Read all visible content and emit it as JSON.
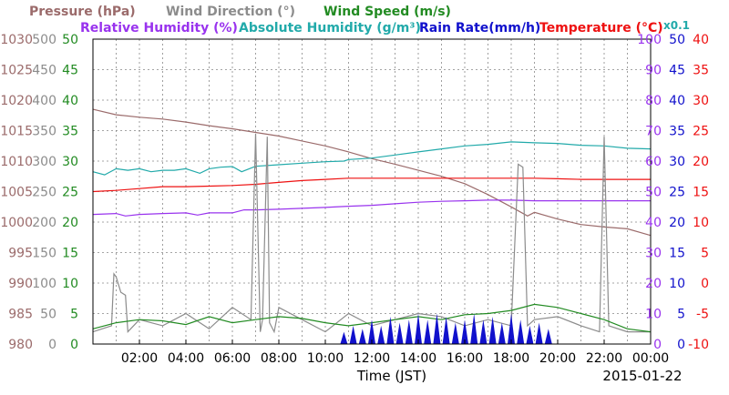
{
  "chart_data": {
    "type": "line",
    "legend_row1": [
      {
        "label": "Pressure (hPa)",
        "color": "#9b6b6b"
      },
      {
        "label": "Wind Direction (°)",
        "color": "#8c8c8c"
      },
      {
        "label": "Wind Speed (m/s)",
        "color": "#228b22"
      }
    ],
    "legend_row2": [
      {
        "label": "Relative Humidity (%)",
        "color": "#9933ee"
      },
      {
        "label": "Absolute Humidity (g/m³)",
        "color": "#22aaaa"
      },
      {
        "label": "Rain Rate(mm/h)",
        "color": "#1111cc"
      },
      {
        "label": "Temperature (°C)",
        "color": "#ee1111"
      }
    ],
    "scale_note": "x0.1",
    "xlabel": "Time (JST)",
    "date": "2015-01-22",
    "x_ticks": [
      "02:00",
      "04:00",
      "06:00",
      "08:00",
      "10:00",
      "12:00",
      "14:00",
      "16:00",
      "18:00",
      "20:00",
      "22:00",
      "00:00"
    ],
    "x_range_hours": [
      0,
      24
    ],
    "grid": true,
    "axes": {
      "pressure": {
        "color": "#9b6b6b",
        "ticks": [
          "980",
          "985",
          "990",
          "995",
          "1000",
          "1005",
          "1010",
          "1015",
          "1020",
          "1025",
          "1030"
        ],
        "range": [
          980,
          1030
        ]
      },
      "wind_direction": {
        "color": "#8c8c8c",
        "ticks": [
          "0",
          "50",
          "100",
          "150",
          "200",
          "250",
          "300",
          "350",
          "400",
          "450",
          "500"
        ],
        "range": [
          0,
          500
        ]
      },
      "wind_speed": {
        "color": "#228b22",
        "ticks": [
          "0",
          "5",
          "10",
          "15",
          "20",
          "25",
          "30",
          "35",
          "40",
          "45",
          "50"
        ],
        "range": [
          0,
          50
        ]
      },
      "humidity": {
        "color": "#9933ee",
        "ticks": [
          "0",
          "10",
          "20",
          "30",
          "40",
          "50",
          "60",
          "70",
          "80",
          "90",
          "100"
        ],
        "range": [
          0,
          100
        ]
      },
      "rain_rate": {
        "color": "#1111cc",
        "ticks": [
          "0",
          "5",
          "10",
          "15",
          "20",
          "25",
          "30",
          "35",
          "40",
          "45",
          "50"
        ],
        "range": [
          0,
          50
        ]
      },
      "temperature": {
        "color": "#ee1111",
        "ticks": [
          "-10",
          "-5",
          "0",
          "5",
          "10",
          "15",
          "20",
          "25",
          "30",
          "35",
          "40"
        ],
        "range": [
          -10,
          40
        ]
      }
    },
    "series": [
      {
        "name": "Pressure (hPa)",
        "axis": "pressure",
        "x": [
          0,
          1,
          2,
          3,
          4,
          5,
          6,
          7,
          8,
          9,
          10,
          11,
          12,
          13,
          14,
          15,
          16,
          17,
          18,
          18.7,
          19,
          20,
          21,
          22,
          23,
          24
        ],
        "values": [
          1018.5,
          1017.6,
          1017.2,
          1016.9,
          1016.4,
          1015.8,
          1015.3,
          1014.7,
          1014.1,
          1013.3,
          1012.5,
          1011.5,
          1010.4,
          1009.5,
          1008.5,
          1007.5,
          1006.3,
          1004.5,
          1002.5,
          1001.0,
          1001.6,
          1000.5,
          999.6,
          999.2,
          998.9,
          997.8
        ]
      },
      {
        "name": "Absolute Humidity (g/m³)",
        "axis": "humidity",
        "x": [
          0,
          0.5,
          1,
          1.5,
          2,
          2.5,
          3,
          3.5,
          4,
          4.6,
          5,
          5.5,
          6,
          6.4,
          7,
          8,
          9,
          10,
          10.8,
          11,
          12,
          13,
          14,
          15,
          16,
          17,
          18,
          19,
          20,
          21,
          22,
          23,
          24
        ],
        "values": [
          56.5,
          55.5,
          57.5,
          57.0,
          57.5,
          56.5,
          57.0,
          57.0,
          57.5,
          56.0,
          57.5,
          58.0,
          58.2,
          56.5,
          58.3,
          58.8,
          59.3,
          59.8,
          60.0,
          60.5,
          61.0,
          62.0,
          63.0,
          64.0,
          65.0,
          65.5,
          66.3,
          66.0,
          65.8,
          65.2,
          65.0,
          64.2,
          64.0
        ]
      },
      {
        "name": "Temperature (°C)",
        "axis": "temperature",
        "x": [
          0,
          1,
          2,
          3,
          4,
          5,
          6,
          7,
          8,
          9,
          10,
          11,
          12,
          13,
          14,
          15,
          16,
          17,
          18,
          19,
          20,
          21,
          22,
          23,
          24
        ],
        "values": [
          15.0,
          15.2,
          15.5,
          15.8,
          15.8,
          15.9,
          16.0,
          16.2,
          16.5,
          16.8,
          17.0,
          17.2,
          17.2,
          17.2,
          17.2,
          17.2,
          17.2,
          17.2,
          17.2,
          17.2,
          17.1,
          17.0,
          17.0,
          17.0,
          17.0
        ]
      },
      {
        "name": "Relative Humidity (%)",
        "axis": "humidity",
        "x": [
          0,
          1,
          1.4,
          2,
          3,
          4,
          4.5,
          5,
          6,
          6.5,
          7,
          8,
          9,
          10,
          11,
          12,
          13,
          14,
          15,
          16,
          17,
          18,
          19,
          20,
          21,
          22,
          23,
          24
        ],
        "values": [
          42.5,
          42.8,
          42.0,
          42.5,
          42.8,
          43.0,
          42.3,
          43.0,
          43.0,
          44.0,
          44.0,
          44.2,
          44.5,
          44.8,
          45.2,
          45.5,
          46.0,
          46.5,
          46.8,
          47.0,
          47.2,
          47.2,
          47.0,
          47.0,
          47.0,
          47.0,
          47.0,
          47.0
        ]
      },
      {
        "name": "Wind Direction (°)",
        "axis": "wind_direction",
        "x": [
          0,
          0.8,
          0.9,
          1.0,
          1.2,
          1.4,
          1.5,
          2,
          3,
          4,
          5,
          6,
          6.8,
          7.0,
          7.2,
          7.3,
          7.5,
          7.6,
          7.8,
          8,
          9,
          10,
          11,
          12,
          13,
          14,
          15,
          16,
          17,
          18,
          18.3,
          18.5,
          18.7,
          19,
          20,
          21,
          21.8,
          22,
          22.2,
          23,
          24
        ],
        "values": [
          20,
          30,
          115,
          110,
          85,
          80,
          20,
          40,
          30,
          50,
          25,
          60,
          40,
          345,
          20,
          40,
          340,
          35,
          20,
          60,
          40,
          20,
          50,
          30,
          40,
          50,
          45,
          30,
          40,
          30,
          295,
          290,
          30,
          40,
          45,
          30,
          20,
          340,
          30,
          20,
          20
        ]
      },
      {
        "name": "Wind Speed (m/s)",
        "axis": "wind_speed",
        "x": [
          0,
          1,
          2,
          3,
          4,
          5,
          6,
          7,
          8,
          9,
          10,
          11,
          12,
          13,
          14,
          15,
          16,
          17,
          18,
          19,
          20,
          21,
          22,
          23,
          24
        ],
        "values": [
          2.5,
          3.5,
          4.0,
          3.8,
          3.2,
          4.5,
          3.5,
          4.0,
          4.5,
          4.2,
          3.5,
          3.0,
          3.5,
          4.0,
          4.5,
          4.0,
          4.8,
          5.0,
          5.5,
          6.5,
          6.0,
          5.0,
          4.0,
          2.5,
          2.0
        ]
      },
      {
        "name": "Rain Rate(mm/h)",
        "axis": "rain_rate",
        "x": [
          10.8,
          11.2,
          11.6,
          12.0,
          12.4,
          12.8,
          13.2,
          13.6,
          14.0,
          14.4,
          14.8,
          15.2,
          15.6,
          16.0,
          16.4,
          16.8,
          17.2,
          17.6,
          18.0,
          18.4,
          18.8,
          19.2,
          19.6
        ],
        "values": [
          2,
          3,
          2.5,
          4,
          3,
          4.5,
          3.5,
          4,
          5,
          4,
          5,
          4.5,
          3.5,
          4,
          5,
          4,
          4.5,
          3.5,
          5,
          4,
          3,
          3.5,
          2.5
        ]
      }
    ]
  }
}
